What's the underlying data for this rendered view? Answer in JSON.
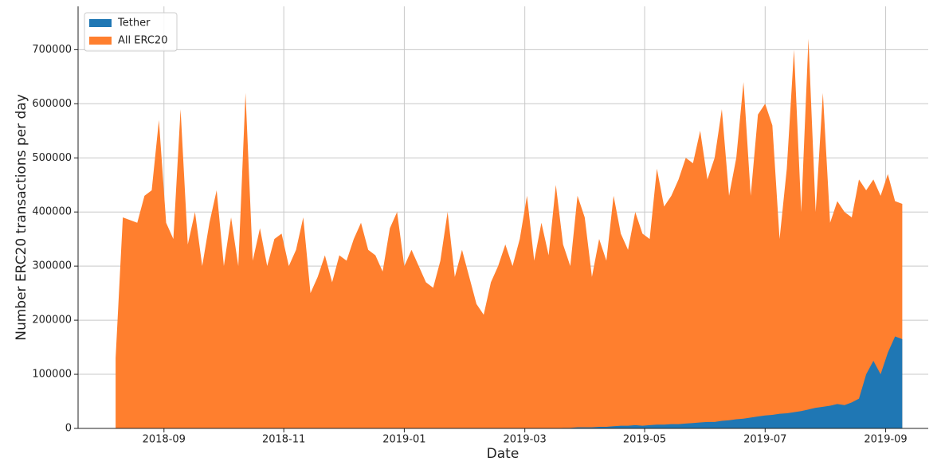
{
  "chart_data": {
    "type": "area",
    "xlabel": "Date",
    "ylabel": "Number ERC20 transactions per day",
    "x": [
      2018.6,
      2018.61,
      2018.62,
      2018.63,
      2018.64,
      2018.65,
      2018.66,
      2018.67,
      2018.68,
      2018.69,
      2018.7,
      2018.71,
      2018.72,
      2018.73,
      2018.74,
      2018.75,
      2018.76,
      2018.77,
      2018.78,
      2018.79,
      2018.8,
      2018.81,
      2018.82,
      2018.83,
      2018.84,
      2018.85,
      2018.86,
      2018.87,
      2018.88,
      2018.89,
      2018.9,
      2018.91,
      2018.92,
      2018.93,
      2018.94,
      2018.95,
      2018.96,
      2018.97,
      2018.98,
      2018.99,
      2019.0,
      2019.01,
      2019.02,
      2019.03,
      2019.04,
      2019.05,
      2019.06,
      2019.07,
      2019.08,
      2019.09,
      2019.1,
      2019.11,
      2019.12,
      2019.13,
      2019.14,
      2019.15,
      2019.16,
      2019.17,
      2019.18,
      2019.19,
      2019.2,
      2019.21,
      2019.22,
      2019.23,
      2019.24,
      2019.25,
      2019.26,
      2019.27,
      2019.28,
      2019.29,
      2019.3,
      2019.31,
      2019.32,
      2019.33,
      2019.34,
      2019.35,
      2019.36,
      2019.37,
      2019.38,
      2019.39,
      2019.4,
      2019.41,
      2019.42,
      2019.43,
      2019.44,
      2019.45,
      2019.46,
      2019.47,
      2019.48,
      2019.49,
      2019.5,
      2019.51,
      2019.52,
      2019.53,
      2019.54,
      2019.55,
      2019.56,
      2019.57,
      2019.58,
      2019.59,
      2019.6,
      2019.61,
      2019.62,
      2019.63,
      2019.64,
      2019.65,
      2019.66,
      2019.67,
      2019.68,
      2019.69
    ],
    "series": [
      {
        "name": "Tether",
        "color": "#1f77b4",
        "values": [
          0,
          0,
          0,
          0,
          0,
          0,
          0,
          0,
          0,
          0,
          0,
          0,
          0,
          0,
          0,
          0,
          0,
          0,
          0,
          0,
          0,
          0,
          0,
          0,
          0,
          0,
          0,
          0,
          0,
          0,
          0,
          0,
          0,
          0,
          0,
          0,
          0,
          0,
          0,
          0,
          0,
          0,
          0,
          0,
          0,
          0,
          0,
          0,
          0,
          0,
          0,
          0,
          0,
          0,
          0,
          0,
          0,
          0,
          0,
          0,
          0,
          0,
          1000,
          1000,
          2000,
          2000,
          2000,
          3000,
          3000,
          4000,
          5000,
          5000,
          6000,
          5000,
          6000,
          7000,
          7000,
          8000,
          8000,
          9000,
          10000,
          11000,
          12000,
          12000,
          14000,
          15000,
          17000,
          18000,
          20000,
          22000,
          24000,
          25000,
          27000,
          28000,
          30000,
          32000,
          35000,
          38000,
          40000,
          42000,
          45000,
          43000,
          48000,
          55000,
          100000,
          125000,
          100000,
          140000,
          170000,
          165000
        ]
      },
      {
        "name": "All ERC20",
        "color": "#ff7f2e",
        "values": [
          130000,
          390000,
          385000,
          380000,
          430000,
          440000,
          570000,
          380000,
          350000,
          590000,
          340000,
          400000,
          300000,
          380000,
          440000,
          300000,
          390000,
          300000,
          620000,
          310000,
          370000,
          300000,
          350000,
          360000,
          300000,
          330000,
          390000,
          250000,
          280000,
          320000,
          270000,
          320000,
          310000,
          350000,
          380000,
          330000,
          320000,
          290000,
          370000,
          400000,
          300000,
          330000,
          300000,
          270000,
          260000,
          310000,
          400000,
          280000,
          330000,
          280000,
          230000,
          210000,
          270000,
          300000,
          340000,
          300000,
          350000,
          430000,
          310000,
          380000,
          320000,
          450000,
          340000,
          300000,
          430000,
          390000,
          280000,
          350000,
          310000,
          430000,
          360000,
          330000,
          400000,
          360000,
          350000,
          480000,
          410000,
          430000,
          460000,
          500000,
          490000,
          550000,
          460000,
          500000,
          590000,
          430000,
          500000,
          640000,
          430000,
          580000,
          600000,
          560000,
          350000,
          480000,
          700000,
          400000,
          720000,
          400000,
          620000,
          380000,
          420000,
          400000,
          390000,
          460000,
          440000,
          460000,
          430000,
          470000,
          420000,
          415000
        ]
      }
    ],
    "xlim": [
      2018.548,
      2019.726
    ],
    "xticks": [
      {
        "value": 2018.667,
        "label": "2018-09"
      },
      {
        "value": 2018.833,
        "label": "2018-11"
      },
      {
        "value": 2019.0,
        "label": "2019-01"
      },
      {
        "value": 2019.167,
        "label": "2019-03"
      },
      {
        "value": 2019.333,
        "label": "2019-05"
      },
      {
        "value": 2019.5,
        "label": "2019-07"
      },
      {
        "value": 2019.667,
        "label": "2019-09"
      }
    ],
    "ylim": [
      0,
      780000
    ],
    "yticks": [
      0,
      100000,
      200000,
      300000,
      400000,
      500000,
      600000,
      700000
    ],
    "grid": true,
    "legend": "upper left"
  }
}
